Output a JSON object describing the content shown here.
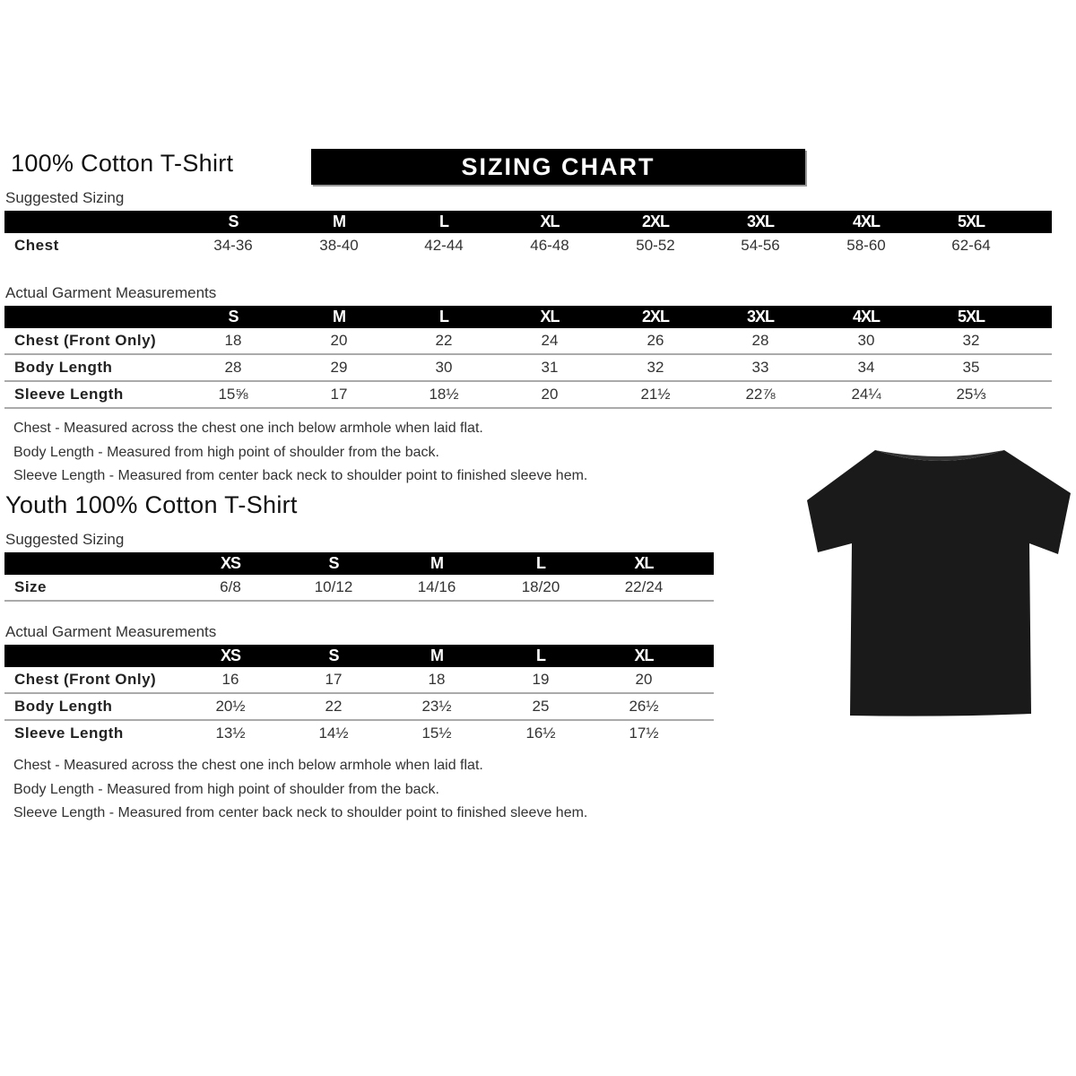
{
  "adult": {
    "title": "100% Cotton T-Shirt",
    "banner": "SIZING CHART",
    "suggested_label": "Suggested Sizing",
    "sizes": [
      "S",
      "M",
      "L",
      "XL",
      "2XL",
      "3XL",
      "4XL",
      "5XL"
    ],
    "suggested_rows": [
      {
        "label": "Chest",
        "values": [
          "34-36",
          "38-40",
          "42-44",
          "46-48",
          "50-52",
          "54-56",
          "58-60",
          "62-64"
        ]
      }
    ],
    "actual_label": "Actual Garment Measurements",
    "actual_rows": [
      {
        "label": "Chest (Front Only)",
        "values": [
          "18",
          "20",
          "22",
          "24",
          "26",
          "28",
          "30",
          "32"
        ]
      },
      {
        "label": "Body Length",
        "values": [
          "28",
          "29",
          "30",
          "31",
          "32",
          "33",
          "34",
          "35"
        ]
      },
      {
        "label": "Sleeve Length",
        "values": [
          "15⅝",
          "17",
          "18½",
          "20",
          "21½",
          "22⅞",
          "24¼",
          "25⅓"
        ]
      }
    ],
    "notes": [
      "Chest - Measured across the chest one inch below armhole when laid flat.",
      "Body Length - Measured from high point of shoulder from the back.",
      "Sleeve Length - Measured from center back neck to shoulder point to finished sleeve hem."
    ]
  },
  "youth": {
    "title": "Youth 100% Cotton T-Shirt",
    "suggested_label": "Suggested Sizing",
    "sizes": [
      "XS",
      "S",
      "M",
      "L",
      "XL"
    ],
    "suggested_rows": [
      {
        "label": "Size",
        "values": [
          "6/8",
          "10/12",
          "14/16",
          "18/20",
          "22/24"
        ]
      }
    ],
    "actual_label": "Actual Garment Measurements",
    "actual_rows": [
      {
        "label": "Chest (Front Only)",
        "values": [
          "16",
          "17",
          "18",
          "19",
          "20"
        ]
      },
      {
        "label": "Body Length",
        "values": [
          "20½",
          "22",
          "23½",
          "25",
          "26½"
        ]
      },
      {
        "label": "Sleeve Length",
        "values": [
          "13½",
          "14½",
          "15½",
          "16½",
          "17½"
        ]
      }
    ],
    "notes": [
      "Chest - Measured across the chest one inch below armhole when laid flat.",
      "Body Length - Measured from high point of shoulder from the back.",
      "Sleeve Length - Measured from center back neck to shoulder point to finished sleeve hem."
    ]
  },
  "shirt_icon": "black-tshirt-icon",
  "colors": {
    "header": "#000000",
    "shirt": "#1a1a1a"
  }
}
